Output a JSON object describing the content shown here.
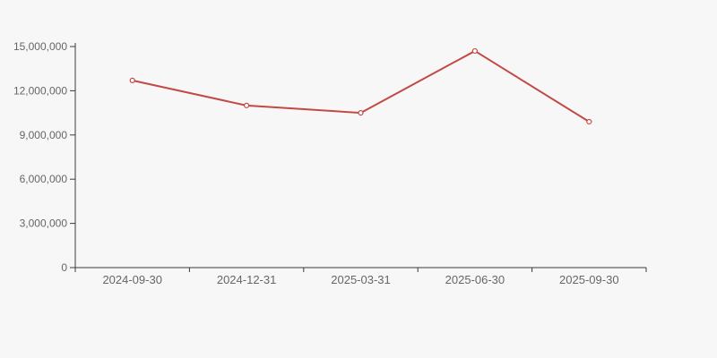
{
  "canvas": {
    "background": "#f7f7f7"
  },
  "chart_data": {
    "type": "line",
    "title": "",
    "xlabel": "",
    "ylabel": "",
    "categories": [
      "2024-09-30",
      "2024-12-31",
      "2025-03-31",
      "2025-06-30",
      "2025-09-30"
    ],
    "values": [
      12700000,
      11000000,
      10500000,
      14700000,
      9900000
    ],
    "ylim": [
      0,
      15000000
    ],
    "ytick_values": [
      0,
      3000000,
      6000000,
      9000000,
      12000000,
      15000000
    ],
    "ytick_labels": [
      "0",
      "3,000,000",
      "6,000,000",
      "9,000,000",
      "12,000,000",
      "15,000,000"
    ],
    "grid": false,
    "legend": "none",
    "line_color": "#c34a44",
    "marker": "hollow-circle",
    "marker_fill": "#ffffff",
    "axis_color": "#3b3b3b",
    "tick_label_color": "#666666",
    "background": "#f7f7f7"
  }
}
